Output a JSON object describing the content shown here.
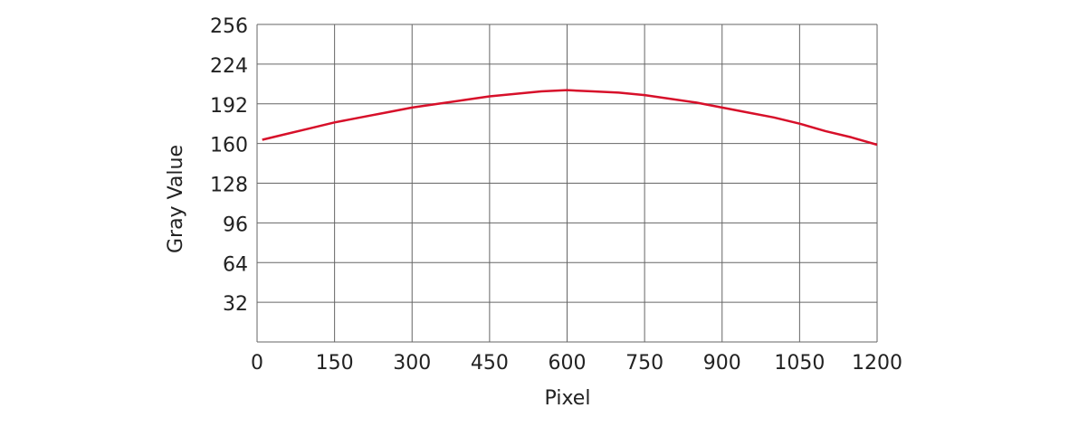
{
  "chart_data": {
    "type": "line",
    "x_label": "Pixel",
    "y_label": "Gray Value",
    "x": [
      10,
      50,
      100,
      150,
      200,
      250,
      300,
      350,
      400,
      450,
      500,
      550,
      600,
      650,
      700,
      750,
      800,
      850,
      900,
      950,
      1000,
      1050,
      1100,
      1150,
      1200
    ],
    "series": [
      {
        "color": "#d7102a",
        "values": [
          163,
          167,
          172,
          177,
          181,
          185,
          189,
          192,
          195,
          198,
          200,
          202,
          203,
          202,
          201,
          199,
          196,
          193,
          189,
          185,
          181,
          176,
          170,
          165,
          159
        ]
      }
    ],
    "xlim": [
      0,
      1200
    ],
    "xticks": [
      0,
      150,
      300,
      450,
      600,
      750,
      900,
      1050,
      1200
    ],
    "ylim": [
      0,
      256
    ],
    "yticks": [
      32,
      64,
      96,
      128,
      160,
      192,
      224,
      256
    ],
    "grid": true
  }
}
